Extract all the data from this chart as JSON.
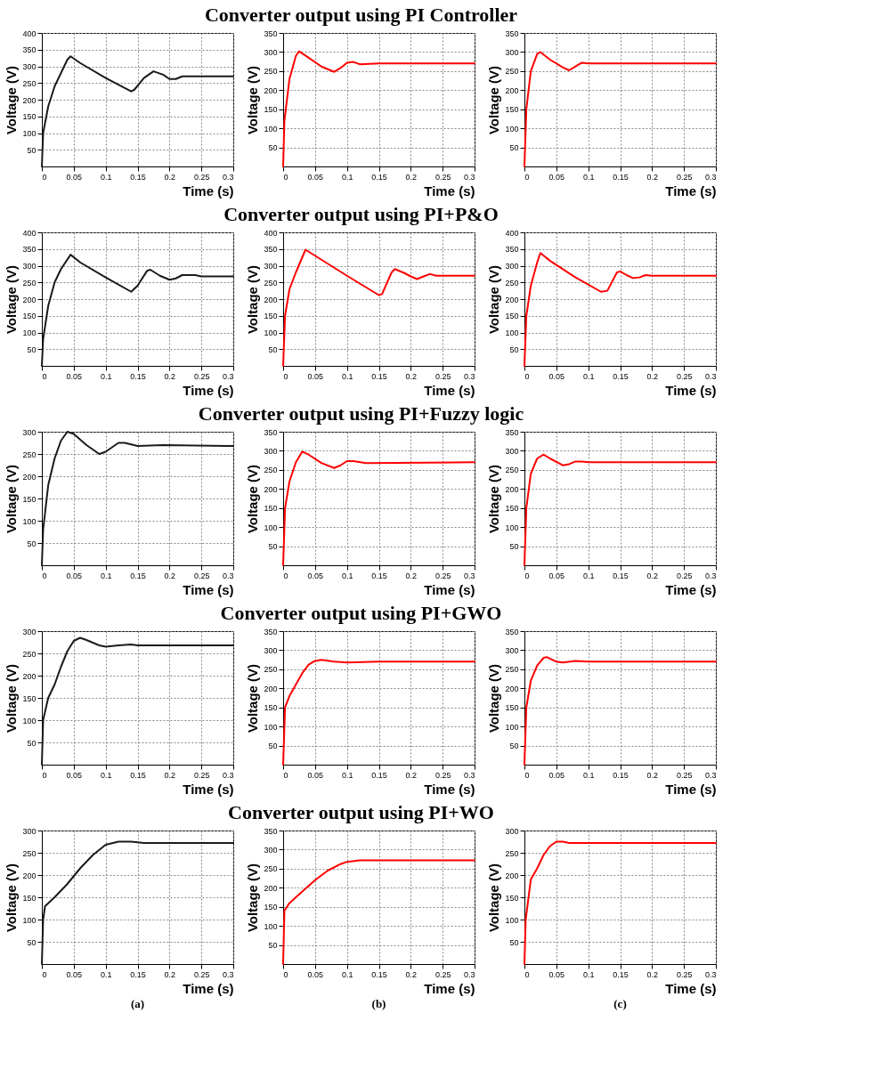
{
  "chart_data": [
    {
      "type": "line",
      "xlabel": "Time (s)",
      "ylabel": "Voltage (V)",
      "x": [
        0,
        0.002,
        0.01,
        0.02,
        0.03,
        0.04,
        0.045,
        0.06,
        0.1,
        0.14,
        0.145,
        0.16,
        0.175,
        0.19,
        0.2,
        0.21,
        0.22,
        0.24,
        0.3
      ],
      "series": [
        {
          "color": "#1a1a1a",
          "values": [
            0,
            100,
            180,
            240,
            280,
            320,
            330,
            310,
            265,
            225,
            230,
            265,
            285,
            275,
            262,
            262,
            270,
            270,
            270
          ]
        }
      ],
      "xlim": [
        0,
        0.3
      ],
      "ylim": [
        0,
        400
      ],
      "xticks": [
        0,
        0.05,
        0.1,
        0.15,
        0.2,
        0.25,
        0.3
      ],
      "yticks": [
        50,
        100,
        150,
        200,
        250,
        300,
        350,
        400
      ],
      "grid": true
    },
    {
      "type": "line",
      "title": "Converter output using PI Controller",
      "xlabel": "Time (s)",
      "ylabel": "Voltage (V)",
      "x": [
        0,
        0.002,
        0.01,
        0.02,
        0.025,
        0.04,
        0.06,
        0.08,
        0.09,
        0.1,
        0.11,
        0.12,
        0.15,
        0.3
      ],
      "series": [
        {
          "color": "#ff0000",
          "values": [
            0,
            120,
            230,
            290,
            302,
            285,
            262,
            248,
            258,
            272,
            274,
            268,
            270,
            270
          ]
        }
      ],
      "xlim": [
        0,
        0.3
      ],
      "ylim": [
        0,
        350
      ],
      "xticks": [
        0,
        0.05,
        0.1,
        0.15,
        0.2,
        0.25,
        0.3
      ],
      "yticks": [
        50,
        100,
        150,
        200,
        250,
        300,
        350
      ],
      "grid": true
    },
    {
      "type": "line",
      "xlabel": "Time (s)",
      "ylabel": "Voltage (V)",
      "x": [
        0,
        0.003,
        0.01,
        0.02,
        0.025,
        0.04,
        0.06,
        0.07,
        0.08,
        0.09,
        0.1,
        0.3
      ],
      "series": [
        {
          "color": "#ff0000",
          "values": [
            0,
            150,
            250,
            295,
            300,
            280,
            260,
            252,
            262,
            272,
            270,
            270
          ]
        }
      ],
      "xlim": [
        0,
        0.3
      ],
      "ylim": [
        0,
        350
      ],
      "xticks": [
        0,
        0.05,
        0.1,
        0.15,
        0.2,
        0.25,
        0.3
      ],
      "yticks": [
        50,
        100,
        150,
        200,
        250,
        300,
        350
      ],
      "grid": true
    },
    {
      "type": "line",
      "xlabel": "Time (s)",
      "ylabel": "Voltage (V)",
      "x": [
        0,
        0.002,
        0.01,
        0.02,
        0.03,
        0.045,
        0.06,
        0.1,
        0.14,
        0.15,
        0.165,
        0.17,
        0.185,
        0.2,
        0.21,
        0.22,
        0.24,
        0.25,
        0.3
      ],
      "series": [
        {
          "color": "#1a1a1a",
          "values": [
            0,
            80,
            180,
            250,
            290,
            333,
            310,
            265,
            222,
            240,
            285,
            288,
            270,
            258,
            262,
            272,
            272,
            268,
            268
          ]
        }
      ],
      "xlim": [
        0,
        0.3
      ],
      "ylim": [
        0,
        400
      ],
      "xticks": [
        0,
        0.05,
        0.1,
        0.15,
        0.2,
        0.25,
        0.3
      ],
      "yticks": [
        50,
        100,
        150,
        200,
        250,
        300,
        350,
        400
      ],
      "grid": true
    },
    {
      "type": "line",
      "title": "Converter output using PI+P&O",
      "xlabel": "Time (s)",
      "ylabel": "Voltage (V)",
      "x": [
        0,
        0.003,
        0.01,
        0.02,
        0.035,
        0.05,
        0.1,
        0.15,
        0.155,
        0.17,
        0.175,
        0.19,
        0.2,
        0.21,
        0.22,
        0.23,
        0.24,
        0.3
      ],
      "series": [
        {
          "color": "#ff0000",
          "values": [
            0,
            150,
            230,
            280,
            348,
            330,
            270,
            212,
            215,
            280,
            290,
            278,
            268,
            260,
            268,
            275,
            270,
            270
          ]
        }
      ],
      "xlim": [
        0,
        0.3
      ],
      "ylim": [
        0,
        400
      ],
      "xticks": [
        0,
        0.05,
        0.1,
        0.15,
        0.2,
        0.25,
        0.3
      ],
      "yticks": [
        50,
        100,
        150,
        200,
        250,
        300,
        350,
        400
      ],
      "grid": true
    },
    {
      "type": "line",
      "xlabel": "Time (s)",
      "ylabel": "Voltage (V)",
      "x": [
        0,
        0.003,
        0.01,
        0.02,
        0.025,
        0.04,
        0.08,
        0.12,
        0.13,
        0.145,
        0.15,
        0.16,
        0.17,
        0.18,
        0.19,
        0.2,
        0.3
      ],
      "series": [
        {
          "color": "#ff0000",
          "values": [
            0,
            150,
            240,
            310,
            338,
            315,
            265,
            222,
            225,
            280,
            283,
            272,
            263,
            265,
            272,
            270,
            270
          ]
        }
      ],
      "xlim": [
        0,
        0.3
      ],
      "ylim": [
        0,
        400
      ],
      "xticks": [
        0,
        0.05,
        0.1,
        0.15,
        0.2,
        0.25,
        0.3
      ],
      "yticks": [
        50,
        100,
        150,
        200,
        250,
        300,
        350,
        400
      ],
      "grid": true
    },
    {
      "type": "line",
      "xlabel": "Time (s)",
      "ylabel": "Voltage (V)",
      "x": [
        0,
        0.002,
        0.01,
        0.02,
        0.03,
        0.04,
        0.05,
        0.07,
        0.09,
        0.1,
        0.12,
        0.13,
        0.15,
        0.19,
        0.3
      ],
      "series": [
        {
          "color": "#1a1a1a",
          "values": [
            0,
            80,
            180,
            240,
            280,
            300,
            295,
            270,
            250,
            255,
            275,
            275,
            268,
            270,
            268
          ]
        }
      ],
      "xlim": [
        0,
        0.3
      ],
      "ylim": [
        0,
        300
      ],
      "xticks": [
        0,
        0.05,
        0.1,
        0.15,
        0.2,
        0.25,
        0.3
      ],
      "yticks": [
        50,
        100,
        150,
        200,
        250,
        300
      ],
      "grid": true
    },
    {
      "type": "line",
      "title": "Converter output using PI+Fuzzy logic",
      "xlabel": "Time (s)",
      "ylabel": "Voltage (V)",
      "x": [
        0,
        0.003,
        0.01,
        0.02,
        0.03,
        0.04,
        0.06,
        0.08,
        0.09,
        0.1,
        0.11,
        0.13,
        0.3
      ],
      "series": [
        {
          "color": "#ff0000",
          "values": [
            0,
            150,
            220,
            270,
            298,
            290,
            268,
            255,
            262,
            273,
            273,
            268,
            270
          ]
        }
      ],
      "xlim": [
        0,
        0.3
      ],
      "ylim": [
        0,
        350
      ],
      "xticks": [
        0,
        0.05,
        0.1,
        0.15,
        0.2,
        0.25,
        0.3
      ],
      "yticks": [
        50,
        100,
        150,
        200,
        250,
        300,
        350
      ],
      "grid": true
    },
    {
      "type": "line",
      "xlabel": "Time (s)",
      "ylabel": "Voltage (V)",
      "x": [
        0,
        0.003,
        0.01,
        0.02,
        0.03,
        0.04,
        0.06,
        0.07,
        0.08,
        0.09,
        0.1,
        0.3
      ],
      "series": [
        {
          "color": "#ff0000",
          "values": [
            0,
            150,
            240,
            280,
            290,
            280,
            262,
            265,
            272,
            272,
            270,
            270
          ]
        }
      ],
      "xlim": [
        0,
        0.3
      ],
      "ylim": [
        0,
        350
      ],
      "xticks": [
        0,
        0.05,
        0.1,
        0.15,
        0.2,
        0.25,
        0.3
      ],
      "yticks": [
        50,
        100,
        150,
        200,
        250,
        300,
        350
      ],
      "grid": true
    },
    {
      "type": "line",
      "xlabel": "Time (s)",
      "ylabel": "Voltage (V)",
      "x": [
        0,
        0.002,
        0.01,
        0.02,
        0.03,
        0.04,
        0.05,
        0.06,
        0.07,
        0.09,
        0.1,
        0.12,
        0.14,
        0.15,
        0.3
      ],
      "series": [
        {
          "color": "#1a1a1a",
          "values": [
            0,
            100,
            150,
            180,
            220,
            255,
            278,
            285,
            280,
            268,
            265,
            268,
            270,
            268,
            268
          ]
        }
      ],
      "xlim": [
        0,
        0.3
      ],
      "ylim": [
        0,
        300
      ],
      "xticks": [
        0,
        0.05,
        0.1,
        0.15,
        0.2,
        0.25,
        0.3
      ],
      "yticks": [
        50,
        100,
        150,
        200,
        250,
        300
      ],
      "grid": true
    },
    {
      "type": "line",
      "title": "Converter output using PI+GWO",
      "xlabel": "Time (s)",
      "ylabel": "Voltage (V)",
      "x": [
        0,
        0.003,
        0.01,
        0.02,
        0.03,
        0.04,
        0.05,
        0.06,
        0.08,
        0.1,
        0.15,
        0.3
      ],
      "series": [
        {
          "color": "#ff0000",
          "values": [
            0,
            150,
            180,
            210,
            240,
            262,
            272,
            275,
            270,
            268,
            270,
            270
          ]
        }
      ],
      "xlim": [
        0,
        0.3
      ],
      "ylim": [
        0,
        350
      ],
      "xticks": [
        0,
        0.05,
        0.1,
        0.15,
        0.2,
        0.25,
        0.3
      ],
      "yticks": [
        50,
        100,
        150,
        200,
        250,
        300,
        350
      ],
      "grid": true
    },
    {
      "type": "line",
      "xlabel": "Time (s)",
      "ylabel": "Voltage (V)",
      "x": [
        0,
        0.003,
        0.01,
        0.02,
        0.03,
        0.035,
        0.05,
        0.06,
        0.08,
        0.1,
        0.3
      ],
      "series": [
        {
          "color": "#ff0000",
          "values": [
            0,
            150,
            220,
            260,
            280,
            282,
            270,
            268,
            272,
            270,
            270
          ]
        }
      ],
      "xlim": [
        0,
        0.3
      ],
      "ylim": [
        0,
        350
      ],
      "xticks": [
        0,
        0.05,
        0.1,
        0.15,
        0.2,
        0.25,
        0.3
      ],
      "yticks": [
        50,
        100,
        150,
        200,
        250,
        300,
        350
      ],
      "grid": true
    },
    {
      "type": "line",
      "xlabel": "Time (s)",
      "ylabel": "Voltage (V)",
      "x": [
        0,
        0.002,
        0.005,
        0.02,
        0.04,
        0.06,
        0.08,
        0.1,
        0.12,
        0.14,
        0.16,
        0.3
      ],
      "series": [
        {
          "color": "#1a1a1a",
          "values": [
            0,
            100,
            130,
            150,
            180,
            215,
            245,
            268,
            275,
            275,
            272,
            272
          ]
        }
      ],
      "xlim": [
        0,
        0.3
      ],
      "ylim": [
        0,
        300
      ],
      "xticks": [
        0,
        0.05,
        0.1,
        0.15,
        0.2,
        0.25,
        0.3
      ],
      "yticks": [
        50,
        100,
        150,
        200,
        250,
        300
      ],
      "grid": true,
      "annotations": [
        "(a)"
      ]
    },
    {
      "type": "line",
      "title": "Converter output using PI+WO",
      "xlabel": "Time (s)",
      "ylabel": "Voltage (V)",
      "x": [
        0,
        0.002,
        0.01,
        0.03,
        0.05,
        0.07,
        0.09,
        0.1,
        0.12,
        0.3
      ],
      "series": [
        {
          "color": "#ff0000",
          "values": [
            0,
            140,
            160,
            190,
            220,
            245,
            262,
            268,
            272,
            272
          ]
        }
      ],
      "xlim": [
        0,
        0.3
      ],
      "ylim": [
        0,
        350
      ],
      "xticks": [
        0,
        0.05,
        0.1,
        0.15,
        0.2,
        0.25,
        0.3
      ],
      "yticks": [
        50,
        100,
        150,
        200,
        250,
        300,
        350
      ],
      "grid": true,
      "annotations": [
        "(b)"
      ]
    },
    {
      "type": "line",
      "xlabel": "Time (s)",
      "ylabel": "Voltage (V)",
      "x": [
        0,
        0.002,
        0.01,
        0.02,
        0.03,
        0.04,
        0.05,
        0.06,
        0.07,
        0.3
      ],
      "series": [
        {
          "color": "#ff0000",
          "values": [
            0,
            100,
            190,
            215,
            245,
            265,
            275,
            275,
            272,
            272
          ]
        }
      ],
      "xlim": [
        0,
        0.3
      ],
      "ylim": [
        0,
        300
      ],
      "xticks": [
        0,
        0.05,
        0.1,
        0.15,
        0.2,
        0.25,
        0.3
      ],
      "yticks": [
        50,
        100,
        150,
        200,
        250,
        300
      ],
      "grid": true,
      "annotations": [
        "(c)"
      ]
    }
  ]
}
